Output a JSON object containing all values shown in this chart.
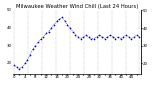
{
  "title": "Milwaukee Weather Wind Chill (Last 24 Hours)",
  "line_color": "#0000dd",
  "bg_color": "#ffffff",
  "plot_bg": "#ffffff",
  "grid_color": "#999999",
  "y_values": [
    19,
    18,
    17,
    18,
    20,
    22,
    25,
    28,
    30,
    32,
    34,
    35,
    37,
    38,
    40,
    42,
    44,
    45,
    46,
    44,
    42,
    40,
    38,
    36,
    35,
    34,
    35,
    36,
    35,
    34,
    34,
    35,
    36,
    35,
    34,
    35,
    36,
    35,
    34,
    35,
    34,
    35,
    36,
    35,
    34,
    35,
    36,
    35
  ],
  "ylim_min": 14,
  "ylim_max": 50,
  "ytick_values": [
    20,
    30,
    40,
    50
  ],
  "ytick_labels": [
    "20",
    "30",
    "40",
    "50"
  ],
  "marker_size": 1.2,
  "title_fontsize": 3.8,
  "tick_fontsize": 2.8,
  "linewidth": 0.5,
  "num_vgrid": 10
}
